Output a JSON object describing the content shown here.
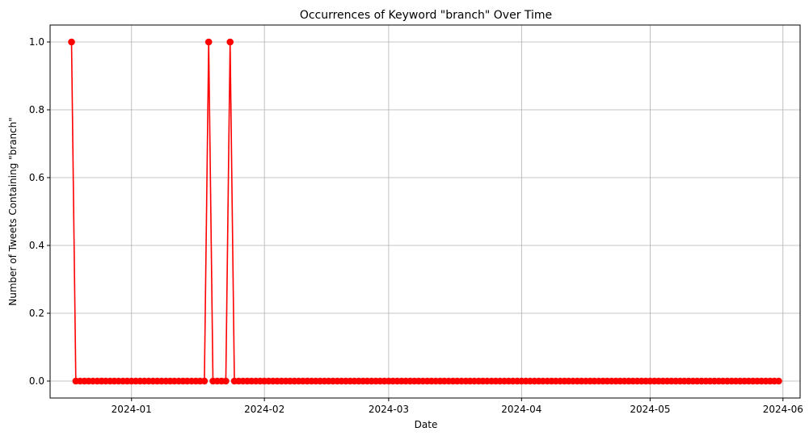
{
  "chart_data": {
    "type": "line",
    "title": "Occurrences of Keyword \"branch\" Over Time",
    "xlabel": "Date",
    "ylabel": "Number of Tweets Containing \"branch\"",
    "x_start": "2023-12-18",
    "x_end": "2024-05-31",
    "spikes": [
      "2023-12-18",
      "2024-01-19",
      "2024-01-24"
    ],
    "spike_value": 1,
    "baseline_value": 0,
    "xlim": [
      "2023-12-13",
      "2024-06-05"
    ],
    "ylim": [
      -0.05,
      1.05
    ],
    "x_ticks": [
      "2024-01",
      "2024-02",
      "2024-03",
      "2024-04",
      "2024-05",
      "2024-06"
    ],
    "y_ticks": [
      "0.0",
      "0.2",
      "0.4",
      "0.6",
      "0.8",
      "1.0"
    ],
    "grid": true,
    "series_color": "#ff0000",
    "marker": "circle"
  }
}
